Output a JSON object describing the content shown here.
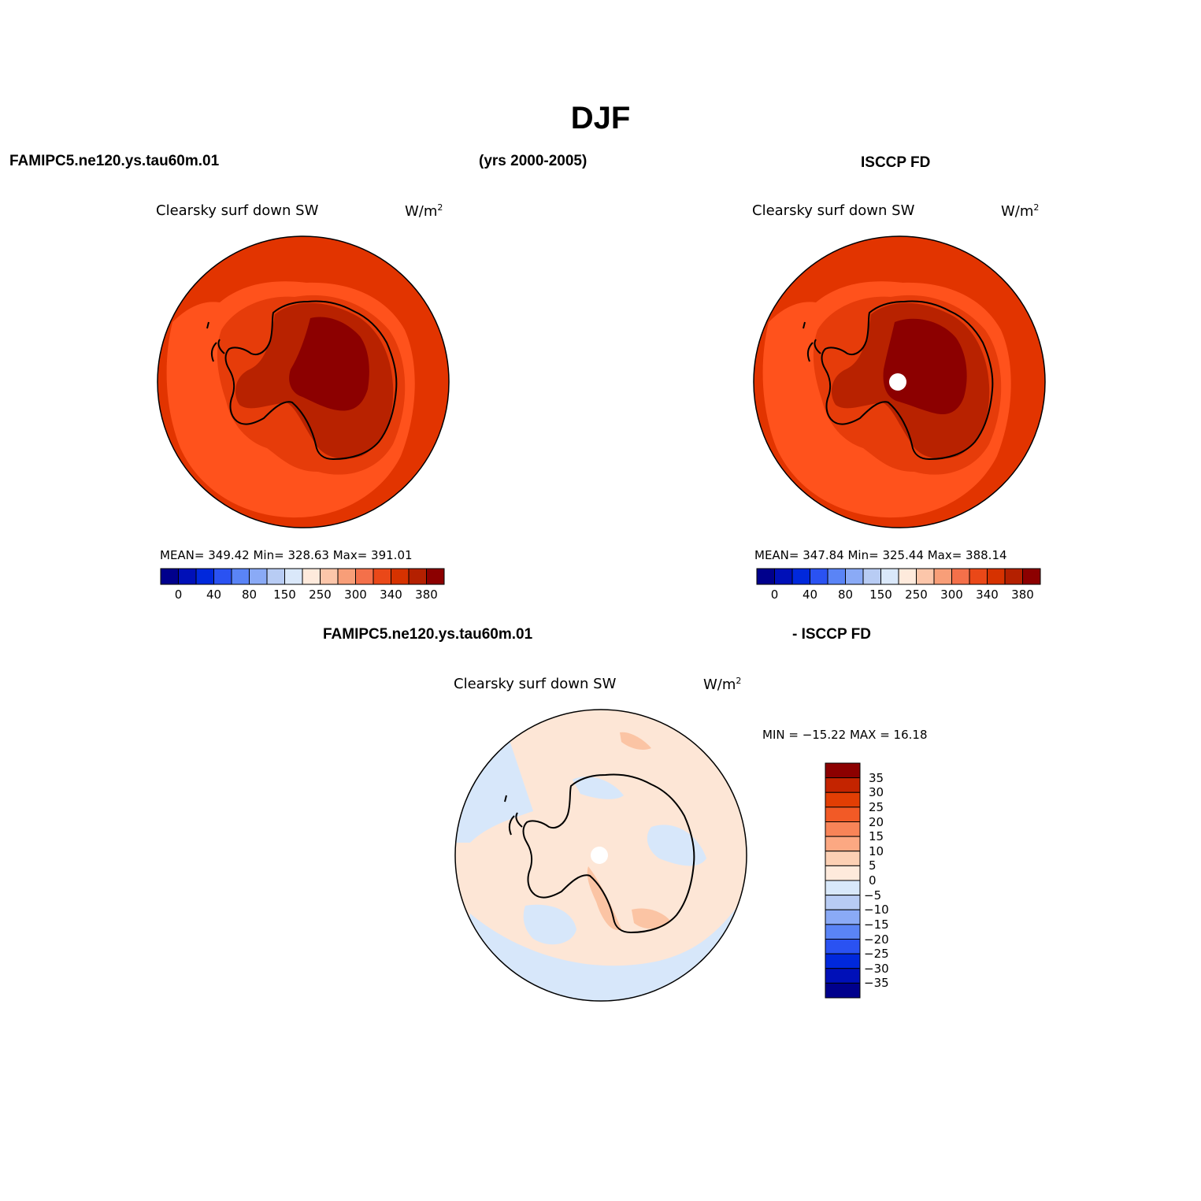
{
  "figure": {
    "title": "DJF",
    "left_header": "FAMIPC5.ne120.ys.tau60m.01",
    "center_header": "(yrs 2000-2005)",
    "right_header": "ISCCP FD",
    "diff_header_left": "FAMIPC5.ne120.ys.tau60m.01",
    "diff_header_right": "- ISCCP FD"
  },
  "panels": {
    "model": {
      "variable": "Clearsky surf down SW",
      "units": "W/m",
      "units_sup": "2",
      "stats": "MEAN= 349.42   Min= 328.63   Max= 391.01"
    },
    "obs": {
      "variable": "Clearsky surf down SW",
      "units": "W/m",
      "units_sup": "2",
      "stats": "MEAN= 347.84   Min= 325.44   Max= 388.14"
    },
    "diff": {
      "variable": "Clearsky surf down SW",
      "units": "W/m",
      "units_sup": "2",
      "stats": "MIN = −15.22 MAX =   16.18"
    }
  },
  "colorbars": {
    "absolute": {
      "colors": [
        "#00008c",
        "#0010b8",
        "#0028dc",
        "#2a52f2",
        "#5a84f6",
        "#8aaaf6",
        "#b8ccf4",
        "#dae8fa",
        "#feeadc",
        "#fcc6aa",
        "#f89e78",
        "#f4704a",
        "#ea4818",
        "#d63200",
        "#b42000",
        "#8c0000"
      ],
      "labels": [
        "0",
        "40",
        "80",
        "150",
        "250",
        "300",
        "340",
        "380"
      ]
    },
    "difference": {
      "colors": [
        "#00008c",
        "#0010b8",
        "#0028dc",
        "#2a52f2",
        "#5a84f6",
        "#8aaaf6",
        "#b8ccf4",
        "#d8e8fa",
        "#feeadc",
        "#fcd0b4",
        "#fca882",
        "#f88458",
        "#f25a26",
        "#e23e04",
        "#c42400",
        "#8c0000"
      ],
      "labels": [
        "35",
        "30",
        "25",
        "20",
        "15",
        "10",
        "5",
        "0",
        "−5",
        "−10",
        "−15",
        "−20",
        "−25",
        "−30",
        "−35"
      ]
    }
  },
  "map_colors": {
    "ocean_far": "#e23400",
    "ocean_mid": "#ff521c",
    "coast_band": "#e63c0a",
    "interior": "#b82200",
    "plateau": "#8c0000",
    "diff_base": "#fde6d6",
    "diff_neg": "#d7e7fa",
    "diff_pos": "#fbc4a4",
    "missing": "#ffffff"
  }
}
